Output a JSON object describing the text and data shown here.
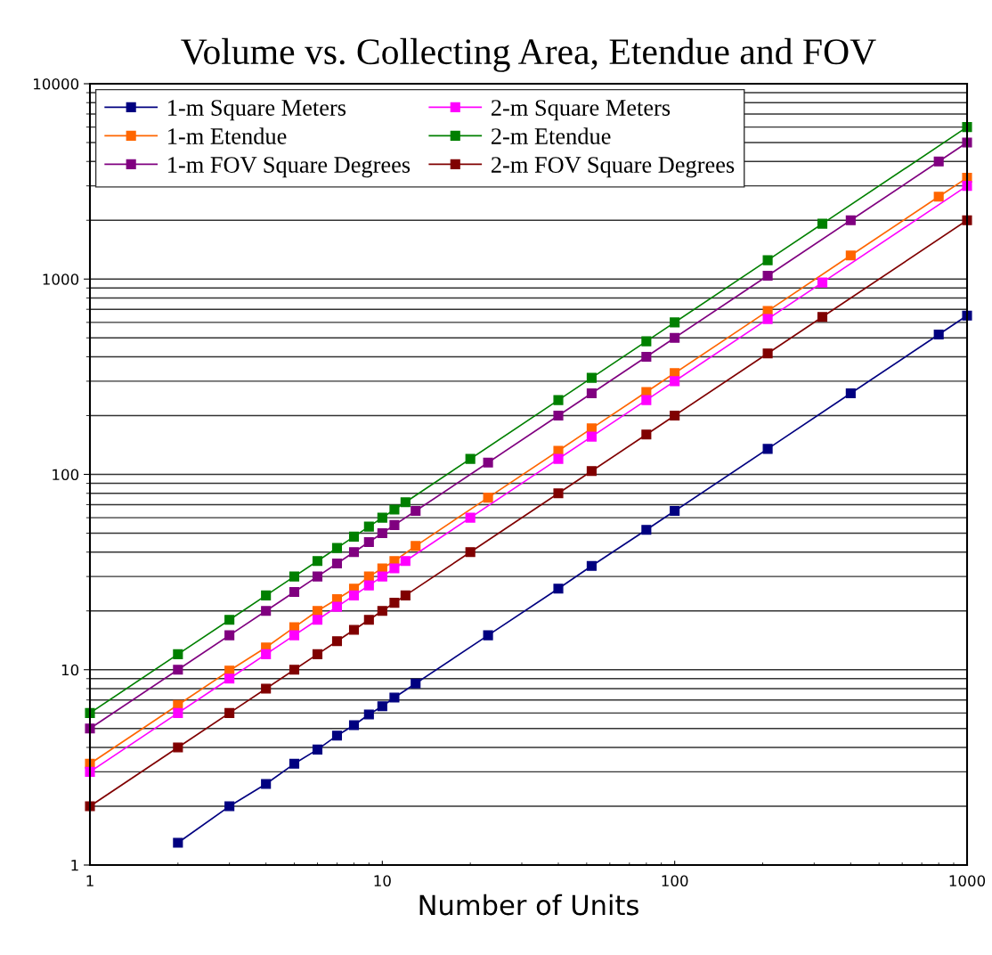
{
  "chart_data": {
    "type": "line",
    "title": "Volume vs. Collecting Area, Etendue and FOV",
    "xlabel": "Number of Units",
    "log": "xy",
    "xlim": [
      1,
      1000
    ],
    "xticks": [
      1,
      10,
      100,
      1000
    ],
    "ylim": [
      1,
      10000
    ],
    "yticks": [
      1,
      10,
      100,
      1000,
      10000
    ],
    "grid": "y",
    "legend": "top left",
    "marker": "square",
    "line_style": "solid",
    "series": [
      {
        "name": "1-m Square Meters",
        "color": "#000080",
        "x": [
          2,
          3,
          4,
          5,
          6,
          7,
          8,
          9,
          10,
          11,
          13,
          23,
          40,
          52,
          80,
          100,
          208,
          400,
          800,
          1000
        ],
        "values": [
          1.3,
          2,
          2.6,
          3.3,
          3.9,
          4.6,
          5.2,
          5.9,
          6.5,
          7.2,
          8.5,
          15,
          26,
          34,
          52,
          65,
          135,
          260,
          520,
          650
        ]
      },
      {
        "name": "1-m Etendue",
        "color": "#ff6600",
        "x": [
          1,
          2,
          3,
          4,
          5,
          6,
          7,
          8,
          9,
          10,
          11,
          13,
          23,
          40,
          52,
          80,
          100,
          208,
          400,
          800,
          1000
        ],
        "values": [
          3.3,
          6.6,
          9.9,
          13,
          16.5,
          20,
          23,
          26,
          30,
          33,
          36,
          43,
          76,
          132,
          172,
          264,
          330,
          686,
          1320,
          2640,
          3300
        ]
      },
      {
        "name": "1-m FOV Square Degrees",
        "color": "#800080",
        "x": [
          1,
          2,
          3,
          4,
          5,
          6,
          7,
          8,
          9,
          10,
          11,
          13,
          23,
          40,
          52,
          80,
          100,
          208,
          400,
          800,
          1000
        ],
        "values": [
          5,
          10,
          15,
          20,
          25,
          30,
          35,
          40,
          45,
          50,
          55,
          65,
          115,
          200,
          260,
          400,
          500,
          1040,
          2000,
          4000,
          5000
        ]
      },
      {
        "name": "2-m Square Meters",
        "color": "#ff00ff",
        "x": [
          1,
          2,
          3,
          4,
          5,
          6,
          7,
          8,
          9,
          10,
          11,
          12,
          20,
          40,
          52,
          80,
          100,
          208,
          320,
          1000
        ],
        "values": [
          3,
          6,
          9,
          12,
          15,
          18,
          21,
          24,
          27,
          30,
          33,
          36,
          60,
          120,
          156,
          240,
          300,
          624,
          960,
          3000
        ]
      },
      {
        "name": "2-m Etendue",
        "color": "#008000",
        "x": [
          1,
          2,
          3,
          4,
          5,
          6,
          7,
          8,
          9,
          10,
          11,
          12,
          20,
          40,
          52,
          80,
          100,
          208,
          320,
          1000
        ],
        "values": [
          6,
          12,
          18,
          24,
          30,
          36,
          42,
          48,
          54,
          60,
          66,
          72,
          120,
          240,
          312,
          480,
          600,
          1248,
          1920,
          6000
        ]
      },
      {
        "name": "2-m FOV Square Degrees",
        "color": "#800000",
        "x": [
          1,
          2,
          3,
          4,
          5,
          6,
          7,
          8,
          9,
          10,
          11,
          12,
          20,
          40,
          52,
          80,
          100,
          208,
          320,
          1000
        ],
        "values": [
          2,
          4,
          6,
          8,
          10,
          12,
          14,
          16,
          18,
          20,
          22,
          24,
          40,
          80,
          104,
          160,
          200,
          416,
          640,
          2000
        ]
      }
    ]
  }
}
